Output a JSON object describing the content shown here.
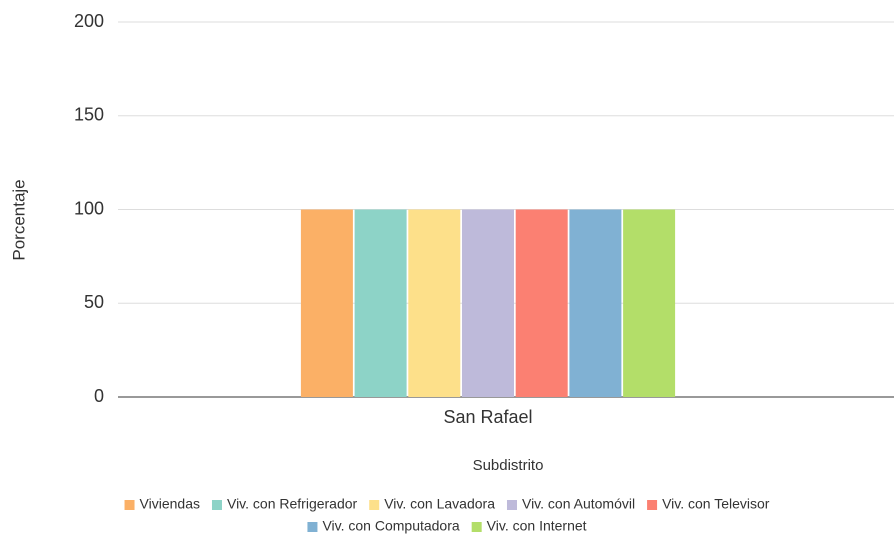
{
  "chart_data": {
    "type": "bar",
    "categories": [
      "San Rafael"
    ],
    "x_label": "Subdistrito",
    "y_label": "Porcentaje",
    "series": [
      {
        "name": "Viviendas",
        "color": "#fbb066",
        "values": [
          100
        ]
      },
      {
        "name": "Viv. con Refrigerador",
        "color": "#8dd3c7",
        "values": [
          100
        ]
      },
      {
        "name": "Viv. con Lavadora",
        "color": "#fde08a",
        "values": [
          100
        ]
      },
      {
        "name": "Viv. con Automóvil",
        "color": "#bebada",
        "values": [
          100
        ]
      },
      {
        "name": "Viv. con Televisor",
        "color": "#fb8072",
        "values": [
          100
        ]
      },
      {
        "name": "Viv. con Computadora",
        "color": "#80b1d3",
        "values": [
          100
        ]
      },
      {
        "name": "Viv. con Internet",
        "color": "#b3de69",
        "values": [
          100
        ]
      }
    ],
    "ylim": [
      0,
      200
    ],
    "yticks": [
      0,
      50,
      100,
      150,
      200
    ],
    "grid": true,
    "legend": "bottom"
  }
}
